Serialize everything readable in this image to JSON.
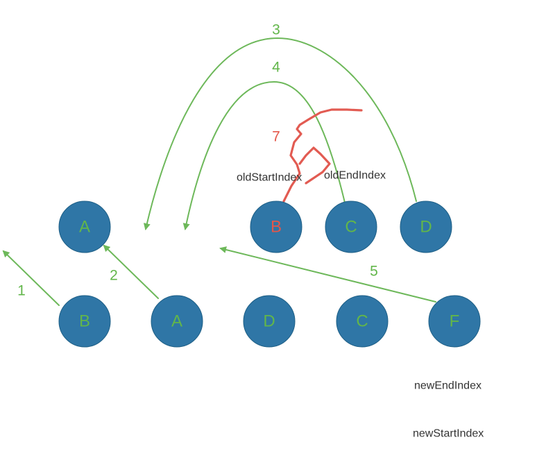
{
  "colors": {
    "node_fill": "#2f76a6",
    "node_label": "#62b64a",
    "highlight_label": "#e4574a",
    "arrow": "#6db85a",
    "scribble": "#e25b52",
    "pointer_text": "#333333"
  },
  "old_nodes": [
    {
      "label": "A",
      "highlight": false
    },
    {
      "label": "B",
      "highlight": true
    },
    {
      "label": "C",
      "highlight": false
    },
    {
      "label": "D",
      "highlight": false
    }
  ],
  "new_nodes": [
    {
      "label": "B",
      "highlight": false
    },
    {
      "label": "A",
      "highlight": false
    },
    {
      "label": "D",
      "highlight": false
    },
    {
      "label": "C",
      "highlight": false
    },
    {
      "label": "F",
      "highlight": false
    }
  ],
  "steps": [
    {
      "label": "1"
    },
    {
      "label": "2"
    },
    {
      "label": "3"
    },
    {
      "label": "4"
    },
    {
      "label": "5"
    },
    {
      "label": "7"
    }
  ],
  "pointers": {
    "old_start": "oldStartIndex",
    "old_end": "oldEndIndex",
    "new_end": "newEndIndex",
    "new_start": "newStartIndex"
  }
}
